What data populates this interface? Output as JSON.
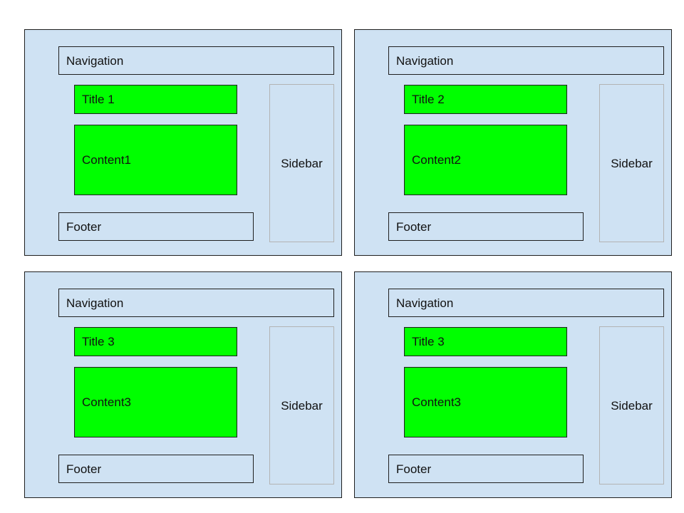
{
  "colors": {
    "panel_background": "#cfe2f3",
    "highlight_green": "#00ff00",
    "outline": "#1f1f1f",
    "sidebar_outline": "#b3b3b3"
  },
  "panels": [
    {
      "navigation": "Navigation",
      "title": "Title 1",
      "content": "Content1",
      "sidebar": "Sidebar",
      "footer": "Footer"
    },
    {
      "navigation": "Navigation",
      "title": "Title 2",
      "content": "Content2",
      "sidebar": "Sidebar",
      "footer": "Footer"
    },
    {
      "navigation": "Navigation",
      "title": "Title 3",
      "content": "Content3",
      "sidebar": "Sidebar",
      "footer": "Footer"
    },
    {
      "navigation": "Navigation",
      "title": "Title 3",
      "content": "Content3",
      "sidebar": "Sidebar",
      "footer": "Footer"
    }
  ]
}
